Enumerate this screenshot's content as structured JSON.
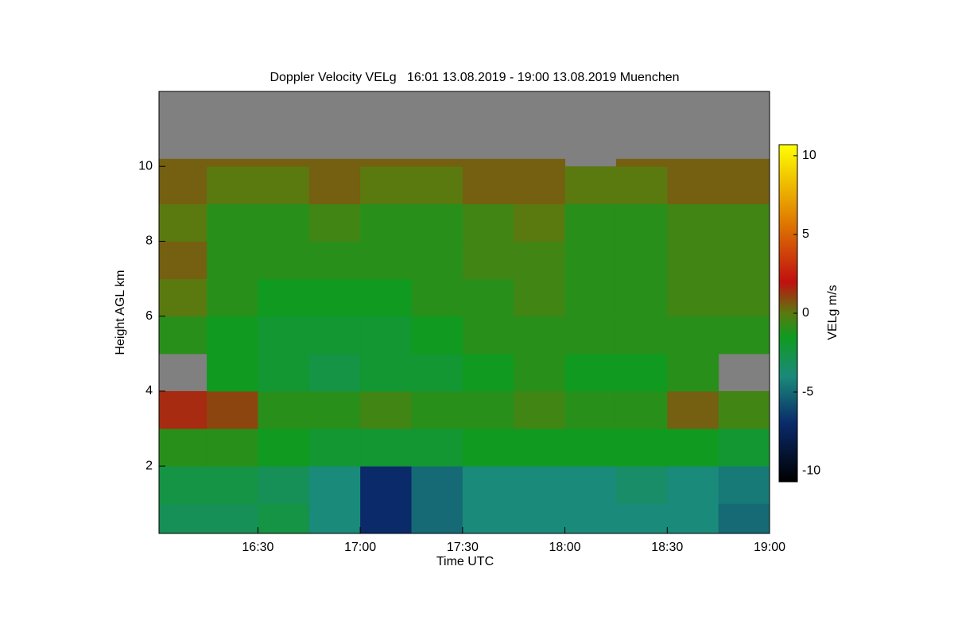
{
  "chart_data": {
    "type": "heatmap",
    "title": "Doppler Velocity VELg   16:01 13.08.2019 - 19:00 13.08.2019 Muenchen",
    "xlabel": "Time UTC",
    "ylabel": "Height AGL km",
    "colorbar_label": "VELg m/s",
    "xlim": [
      16.0167,
      19.0
    ],
    "xticks": [
      {
        "value": 16.5,
        "label": "16:30"
      },
      {
        "value": 17.0,
        "label": "17:00"
      },
      {
        "value": 17.5,
        "label": "17:30"
      },
      {
        "value": 18.0,
        "label": "18:00"
      },
      {
        "value": 18.5,
        "label": "18:30"
      },
      {
        "value": 19.0,
        "label": "19:00"
      }
    ],
    "ylim": [
      0.2,
      12.0
    ],
    "yticks": [
      2,
      4,
      6,
      8,
      10
    ],
    "zlim": [
      -10.7,
      10.7
    ],
    "zticks": [
      -10,
      -5,
      0,
      5,
      10
    ],
    "colormap": [
      {
        "value": -10.7,
        "color": "#000000"
      },
      {
        "value": -7,
        "color": "#0a2a6a"
      },
      {
        "value": -4,
        "color": "#1a8a7a"
      },
      {
        "value": -1.5,
        "color": "#109a20"
      },
      {
        "value": 0,
        "color": "#5a7a10"
      },
      {
        "value": 2,
        "color": "#c01010"
      },
      {
        "value": 6,
        "color": "#e08000"
      },
      {
        "value": 10.7,
        "color": "#ffff00"
      }
    ],
    "missing_color": "#808080",
    "x_bins": [
      16.0167,
      16.25,
      16.5,
      16.75,
      17.0,
      17.25,
      17.5,
      17.75,
      18.0,
      18.25,
      18.5,
      18.75,
      19.0
    ],
    "y_bins": [
      0.2,
      1,
      2,
      3,
      4,
      5,
      6,
      7,
      8,
      9,
      10,
      10.2
    ],
    "z": [
      [
        -3,
        -3,
        -2.5,
        -4,
        -7,
        -5,
        -4,
        -4,
        -4,
        -4,
        -4,
        -5
      ],
      [
        -2.5,
        -2.5,
        -3,
        -4,
        -7,
        -5,
        -4,
        -4,
        -4,
        -3.5,
        -4,
        -4.5
      ],
      [
        -1,
        -1,
        -1.5,
        -2,
        -2,
        -2,
        -1.5,
        -1.5,
        -1.5,
        -1.5,
        -1.5,
        -2
      ],
      [
        1.5,
        1,
        -1,
        -1,
        -0.5,
        -1,
        -1,
        -0.5,
        -1,
        -1,
        0.5,
        -0.5
      ],
      [
        null,
        -1.5,
        -2,
        -2.5,
        -2,
        -2,
        -1.5,
        -1,
        -1.5,
        -1.5,
        -1,
        null
      ],
      [
        -1,
        -1.5,
        -2,
        -2,
        -2,
        -1.5,
        -1,
        -1,
        -1,
        -1,
        -1,
        -1
      ],
      [
        0,
        -1,
        -1.5,
        -1.5,
        -1.5,
        -1,
        -1,
        -0.5,
        -1,
        -1,
        -0.5,
        -0.5
      ],
      [
        0.5,
        -1,
        -1,
        -1,
        -1,
        -1,
        -0.5,
        -0.5,
        -1,
        -1,
        -0.5,
        -0.5
      ],
      [
        0,
        -1,
        -1,
        -0.5,
        -1,
        -1,
        -0.5,
        0,
        -1,
        -1,
        -0.5,
        -0.5
      ],
      [
        0.5,
        0,
        0,
        0.5,
        0,
        0,
        0.5,
        0.5,
        0,
        0,
        0.5,
        0.5
      ],
      [
        0.5,
        0.5,
        0.5,
        0.5,
        0.5,
        0.5,
        0.5,
        0.5,
        null,
        0.5,
        0.5,
        0.5
      ]
    ]
  }
}
